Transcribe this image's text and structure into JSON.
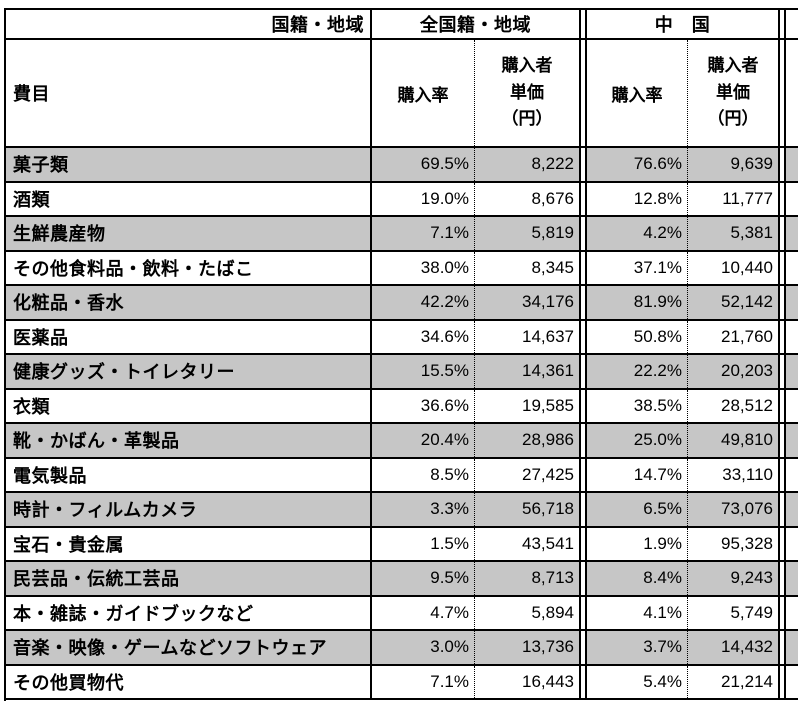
{
  "colors": {
    "border": "#000000",
    "shaded_row": "#c6c6c6",
    "background": "#ffffff"
  },
  "header": {
    "corner_label": "国籍・地域",
    "group_all": "全国籍・地域",
    "group_china": "中　国",
    "item_column": "費目",
    "rate_column": "購入率",
    "price_column": "購入者\n単価\n（円）"
  },
  "rows": [
    {
      "item": "菓子類",
      "all_rate": "69.5%",
      "all_price": "8,222",
      "cn_rate": "76.6%",
      "cn_price": "9,639",
      "shaded": true
    },
    {
      "item": "酒類",
      "all_rate": "19.0%",
      "all_price": "8,676",
      "cn_rate": "12.8%",
      "cn_price": "11,777",
      "shaded": false
    },
    {
      "item": "生鮮農産物",
      "all_rate": "7.1%",
      "all_price": "5,819",
      "cn_rate": "4.2%",
      "cn_price": "5,381",
      "shaded": true
    },
    {
      "item": "その他食料品・飲料・たばこ",
      "all_rate": "38.0%",
      "all_price": "8,345",
      "cn_rate": "37.1%",
      "cn_price": "10,440",
      "shaded": false
    },
    {
      "item": "化粧品・香水",
      "all_rate": "42.2%",
      "all_price": "34,176",
      "cn_rate": "81.9%",
      "cn_price": "52,142",
      "shaded": true
    },
    {
      "item": "医薬品",
      "all_rate": "34.6%",
      "all_price": "14,637",
      "cn_rate": "50.8%",
      "cn_price": "21,760",
      "shaded": false
    },
    {
      "item": "健康グッズ・トイレタリー",
      "all_rate": "15.5%",
      "all_price": "14,361",
      "cn_rate": "22.2%",
      "cn_price": "20,203",
      "shaded": true
    },
    {
      "item": "衣類",
      "all_rate": "36.6%",
      "all_price": "19,585",
      "cn_rate": "38.5%",
      "cn_price": "28,512",
      "shaded": false
    },
    {
      "item": "靴・かばん・革製品",
      "all_rate": "20.4%",
      "all_price": "28,986",
      "cn_rate": "25.0%",
      "cn_price": "49,810",
      "shaded": true
    },
    {
      "item": "電気製品",
      "all_rate": "8.5%",
      "all_price": "27,425",
      "cn_rate": "14.7%",
      "cn_price": "33,110",
      "shaded": false
    },
    {
      "item": "時計・フィルムカメラ",
      "all_rate": "3.3%",
      "all_price": "56,718",
      "cn_rate": "6.5%",
      "cn_price": "73,076",
      "shaded": true
    },
    {
      "item": "宝石・貴金属",
      "all_rate": "1.5%",
      "all_price": "43,541",
      "cn_rate": "1.9%",
      "cn_price": "95,328",
      "shaded": false
    },
    {
      "item": "民芸品・伝統工芸品",
      "all_rate": "9.5%",
      "all_price": "8,713",
      "cn_rate": "8.4%",
      "cn_price": "9,243",
      "shaded": true
    },
    {
      "item": "本・雑誌・ガイドブックなど",
      "all_rate": "4.7%",
      "all_price": "5,894",
      "cn_rate": "4.1%",
      "cn_price": "5,749",
      "shaded": false
    },
    {
      "item": "音楽・映像・ゲームなどソフトウェア",
      "all_rate": "3.0%",
      "all_price": "13,736",
      "cn_rate": "3.7%",
      "cn_price": "14,432",
      "shaded": true
    },
    {
      "item": "その他買物代",
      "all_rate": "7.1%",
      "all_price": "16,443",
      "cn_rate": "5.4%",
      "cn_price": "21,214",
      "shaded": false
    }
  ]
}
